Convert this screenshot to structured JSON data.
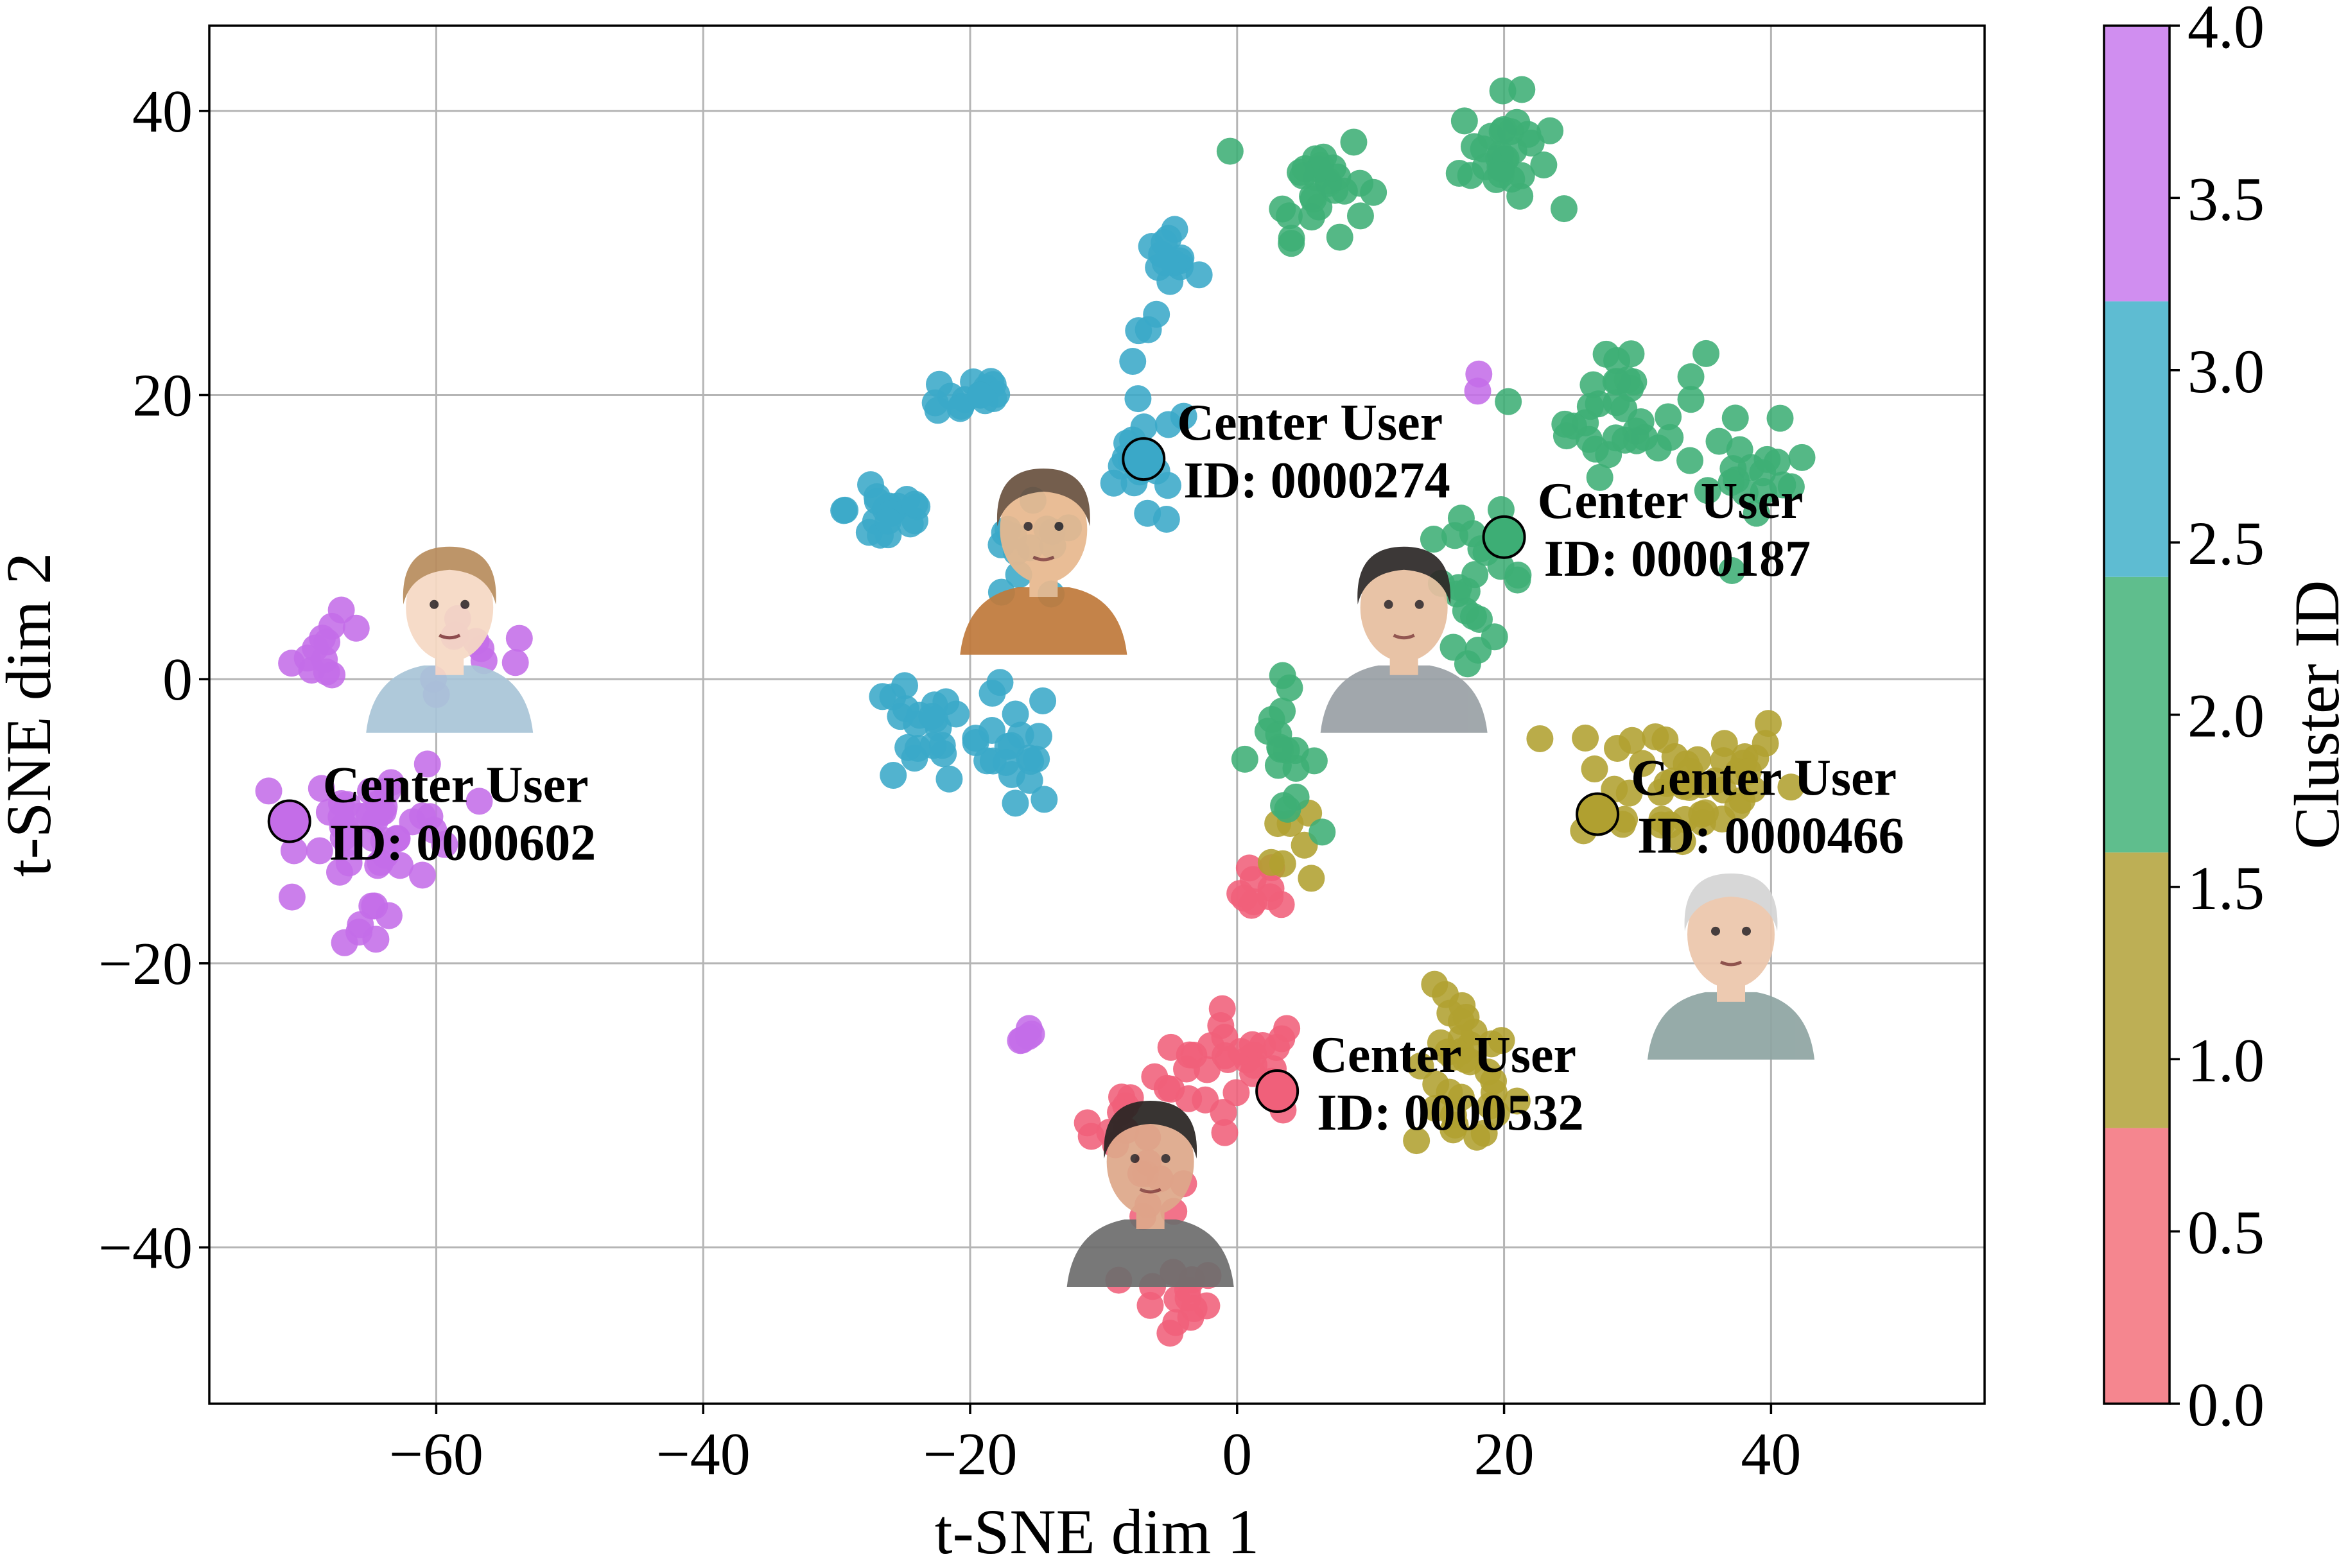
{
  "chart_data": {
    "type": "scatter",
    "title": "",
    "xlabel": "t-SNE dim 1",
    "ylabel": "t-SNE dim 2",
    "xlim": [
      -77,
      56
    ],
    "ylim": [
      -51,
      46
    ],
    "xticks": [
      -60,
      -40,
      -20,
      0,
      20,
      40
    ],
    "yticks": [
      -40,
      -20,
      0,
      20,
      40
    ],
    "xtick_labels": [
      "−60",
      "−40",
      "−20",
      "0",
      "20",
      "40"
    ],
    "ytick_labels": [
      "−40",
      "−20",
      "0",
      "20",
      "40"
    ],
    "grid": true,
    "colorbar": {
      "label": "Cluster ID",
      "range": [
        0.0,
        4.0
      ],
      "tick_values": [
        0.0,
        0.5,
        1.0,
        1.5,
        2.0,
        2.5,
        3.0,
        3.5,
        4.0
      ],
      "tick_labels": [
        "0.0",
        "0.5",
        "1.0",
        "1.5",
        "2.0",
        "2.5",
        "3.0",
        "3.5",
        "4.0"
      ],
      "bands": [
        {
          "from": 0.0,
          "to": 0.8,
          "color": "#f5868f"
        },
        {
          "from": 0.8,
          "to": 1.6,
          "color": "#bdaf55"
        },
        {
          "from": 1.6,
          "to": 2.4,
          "color": "#5fbe8d"
        },
        {
          "from": 2.4,
          "to": 3.2,
          "color": "#5ebcd2"
        },
        {
          "from": 3.2,
          "to": 4.0,
          "color": "#d08ef0"
        }
      ]
    },
    "clusters": [
      {
        "id": 0,
        "color": "#f0607a",
        "blobs": [
          {
            "cx": 0,
            "cy": -27,
            "sx": 4,
            "sy": 2.5,
            "n": 30
          },
          {
            "cx": 2,
            "cy": -15,
            "sx": 1.2,
            "sy": 1.5,
            "n": 10
          },
          {
            "cx": -8,
            "cy": -31,
            "sx": 2.5,
            "sy": 2,
            "n": 12
          },
          {
            "cx": -5,
            "cy": -44,
            "sx": 2.5,
            "sy": 1.8,
            "n": 14
          },
          {
            "cx": -6,
            "cy": -36,
            "sx": 1.5,
            "sy": 2,
            "n": 8
          }
        ]
      },
      {
        "id": 1,
        "color": "#b0a030",
        "blobs": [
          {
            "cx": 17,
            "cy": -28,
            "sx": 2.5,
            "sy": 4,
            "n": 34
          },
          {
            "cx": 33,
            "cy": -7,
            "sx": 6,
            "sy": 3.5,
            "n": 48
          },
          {
            "cx": 5,
            "cy": -11,
            "sx": 1.5,
            "sy": 3,
            "n": 7
          }
        ]
      },
      {
        "id": 2,
        "color": "#3dae75",
        "blobs": [
          {
            "cx": 6,
            "cy": 35,
            "sx": 2.5,
            "sy": 2.5,
            "n": 28
          },
          {
            "cx": 20,
            "cy": 37,
            "sx": 2.2,
            "sy": 2.6,
            "n": 30
          },
          {
            "cx": 29,
            "cy": 19,
            "sx": 4,
            "sy": 3,
            "n": 36
          },
          {
            "cx": 39,
            "cy": 14,
            "sx": 2.5,
            "sy": 2.5,
            "n": 18
          },
          {
            "cx": 18,
            "cy": 7,
            "sx": 2.5,
            "sy": 3,
            "n": 22
          },
          {
            "cx": 3,
            "cy": -5,
            "sx": 2,
            "sy": 3,
            "n": 18
          }
        ]
      },
      {
        "id": 3,
        "color": "#3aa8c8",
        "blobs": [
          {
            "cx": -5,
            "cy": 28,
            "sx": 1.6,
            "sy": 2.5,
            "n": 16
          },
          {
            "cx": -20,
            "cy": 20,
            "sx": 2.2,
            "sy": 1.2,
            "n": 16
          },
          {
            "cx": -26,
            "cy": 12,
            "sx": 2.2,
            "sy": 2.2,
            "n": 20
          },
          {
            "cx": -7,
            "cy": 15,
            "sx": 2.5,
            "sy": 3,
            "n": 18
          },
          {
            "cx": -24,
            "cy": -4,
            "sx": 2.5,
            "sy": 2.5,
            "n": 20
          },
          {
            "cx": -17,
            "cy": -5,
            "sx": 2.3,
            "sy": 3,
            "n": 22
          },
          {
            "cx": -16,
            "cy": 8,
            "sx": 3,
            "sy": 2.5,
            "n": 14
          }
        ]
      },
      {
        "id": 4,
        "color": "#c46de8",
        "blobs": [
          {
            "cx": -64,
            "cy": -10,
            "sx": 4,
            "sy": 2.8,
            "n": 42
          },
          {
            "cx": -68,
            "cy": 2,
            "sx": 2,
            "sy": 1.6,
            "n": 12
          },
          {
            "cx": -65,
            "cy": -17,
            "sx": 1.5,
            "sy": 1,
            "n": 7
          },
          {
            "cx": -57,
            "cy": 2,
            "sx": 3,
            "sy": 2,
            "n": 10
          },
          {
            "cx": -16,
            "cy": -25,
            "sx": 1.2,
            "sy": 0.5,
            "n": 5
          },
          {
            "cx": 18,
            "cy": 21,
            "sx": 0.5,
            "sy": 0.4,
            "n": 2
          }
        ]
      }
    ],
    "center_users": [
      {
        "x": -7,
        "y": 15.5,
        "cluster": 3,
        "line1": "Center User",
        "line2": "ID: 0000274"
      },
      {
        "x": 20,
        "y": 10,
        "cluster": 2,
        "line1": "Center User",
        "line2": "ID: 0000187"
      },
      {
        "x": 27,
        "y": -9.5,
        "cluster": 1,
        "line1": "Center User",
        "line2": "ID: 0000466"
      },
      {
        "x": 3,
        "y": -29,
        "cluster": 0,
        "line1": "Center User",
        "line2": "ID: 0000532"
      },
      {
        "x": -71,
        "y": -10,
        "cluster": 4,
        "line1": "Center User",
        "line2": "ID: 0000602"
      }
    ],
    "avatars": [
      {
        "name": "girl-avatar",
        "x": -59,
        "y": 3,
        "hair": "#b98d5e",
        "skin": "#f6d9c4",
        "shirt": "#a9c5d8"
      },
      {
        "name": "monk-avatar",
        "x": -14.5,
        "y": 8.5,
        "hair": "#6a5240",
        "skin": "#e8b98f",
        "shirt": "#c07a3c"
      },
      {
        "name": "young-man-avatar",
        "x": 12.5,
        "y": 3,
        "hair": "#2e2a28",
        "skin": "#e7bfa0",
        "shirt": "#9aa1a6"
      },
      {
        "name": "older-woman-avatar",
        "x": 37,
        "y": -20,
        "hair": "#d5d5d5",
        "skin": "#ecc6ac",
        "shirt": "#8fa5a3"
      },
      {
        "name": "man-avatar",
        "x": -6.5,
        "y": -36,
        "hair": "#2a2523",
        "skin": "#dea88a",
        "shirt": "#6e6e6e"
      }
    ]
  }
}
